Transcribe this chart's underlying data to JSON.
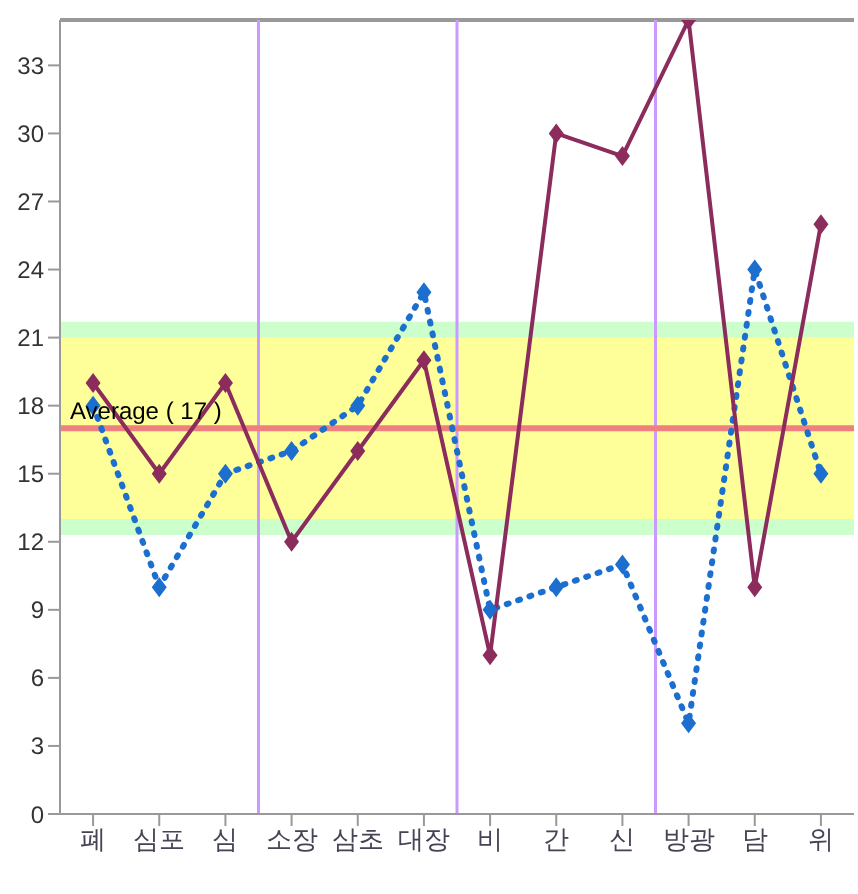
{
  "chart_data": {
    "type": "line",
    "categories": [
      "폐",
      "심포",
      "심",
      "소장",
      "삼초",
      "대장",
      "비",
      "간",
      "신",
      "방광",
      "담",
      "위"
    ],
    "ylim": [
      0,
      35
    ],
    "yticks": [
      0,
      3,
      6,
      9,
      12,
      15,
      18,
      21,
      24,
      27,
      30,
      33
    ],
    "series": [
      {
        "color": "#1c6fcf",
        "line_style": "dotted",
        "values": [
          18,
          10,
          15,
          16,
          18,
          23,
          9,
          10,
          11,
          4,
          24,
          15
        ]
      },
      {
        "color": "#8b2c5c",
        "line_style": "solid",
        "values": [
          19,
          15,
          19,
          12,
          16,
          20,
          7,
          30,
          29,
          35,
          10,
          26
        ]
      }
    ],
    "marker": "diamond",
    "grid": false,
    "bands": [
      {
        "axis": "y",
        "from": 12.3,
        "to": 21.7,
        "color": "#ccffcc"
      },
      {
        "axis": "y",
        "from": 13,
        "to": 21,
        "color": "#ffff99"
      }
    ],
    "ref_lines": [
      {
        "axis": "y",
        "value": 17,
        "label": "Average ( 17 )",
        "color": "#f08080"
      }
    ]
  }
}
